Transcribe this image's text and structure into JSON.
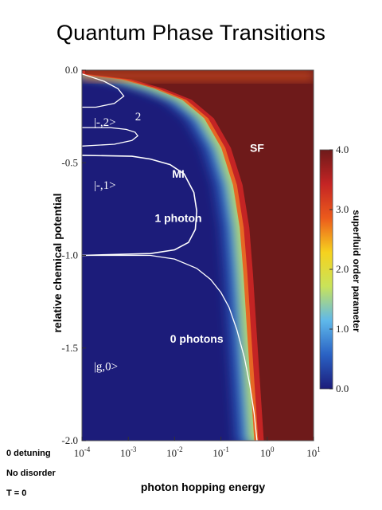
{
  "chart_data": {
    "type": "heatmap",
    "title": "Quantum Phase Transitions",
    "xlabel": "photon hopping energy",
    "ylabel": "relative chemical potential",
    "x_scale": "log",
    "xlim": [
      0.0001,
      10
    ],
    "ylim": [
      -2.0,
      0.0
    ],
    "x_ticks": [
      "10-4",
      "10-3",
      "10-2",
      "10-1",
      "100",
      "101"
    ],
    "y_ticks": [
      "0.0",
      "-0.5",
      "-1.0",
      "-1.5",
      "-2.0"
    ],
    "colorbar": {
      "label": "superfluid order parameter",
      "range": [
        0.0,
        4.0
      ],
      "ticks": [
        "0.0",
        "1.0",
        "2.0",
        "3.0",
        "4.0"
      ],
      "colors": [
        "#1c1c7a",
        "#2a62c4",
        "#5fb8ea",
        "#c9e35a",
        "#f6d21e",
        "#ec5b1c",
        "#c42424",
        "#6e1a1a"
      ]
    },
    "annotations": [
      {
        "text": "SF",
        "x": 0.6,
        "y": -0.44
      },
      {
        "text": "MI",
        "x": 0.012,
        "y": -0.58
      },
      {
        "text": "1 photon",
        "x": 0.012,
        "y": -0.82
      },
      {
        "text": "0 photons",
        "x": 0.03,
        "y": -1.47
      },
      {
        "text": "|g,0>",
        "x": 0.00018,
        "y": -1.62
      },
      {
        "text": "|-,1>",
        "x": 0.00018,
        "y": -0.64
      },
      {
        "text": "|-,2>",
        "x": 0.00018,
        "y": -0.3
      },
      {
        "text": "2",
        "x": 0.0014,
        "y": -0.27
      }
    ],
    "boundaries": [
      {
        "name": "n0",
        "points": [
          [
            0.0001,
            -1.0
          ],
          [
            0.003,
            -1.0
          ],
          [
            0.01,
            -1.02
          ],
          [
            0.03,
            -1.07
          ],
          [
            0.06,
            -1.13
          ],
          [
            0.1,
            -1.2
          ],
          [
            0.15,
            -1.28
          ],
          [
            0.22,
            -1.4
          ],
          [
            0.32,
            -1.55
          ],
          [
            0.42,
            -1.7
          ],
          [
            0.52,
            -1.85
          ],
          [
            0.6,
            -2.0
          ]
        ]
      },
      {
        "name": "n1",
        "points": [
          [
            0.0001,
            -1.0
          ],
          [
            0.003,
            -0.99
          ],
          [
            0.01,
            -0.97
          ],
          [
            0.02,
            -0.93
          ],
          [
            0.028,
            -0.86
          ],
          [
            0.03,
            -0.76
          ],
          [
            0.026,
            -0.66
          ],
          [
            0.016,
            -0.56
          ],
          [
            0.008,
            -0.51
          ],
          [
            0.003,
            -0.48
          ],
          [
            0.0012,
            -0.465
          ],
          [
            0.0001,
            -0.46
          ]
        ]
      },
      {
        "name": "n2",
        "points": [
          [
            0.0001,
            -0.41
          ],
          [
            0.0005,
            -0.4
          ],
          [
            0.0012,
            -0.38
          ],
          [
            0.0016,
            -0.355
          ],
          [
            0.0014,
            -0.335
          ],
          [
            0.0009,
            -0.32
          ],
          [
            0.0004,
            -0.31
          ],
          [
            0.0001,
            -0.31
          ]
        ]
      },
      {
        "name": "n3",
        "points": [
          [
            0.0001,
            -0.02
          ],
          [
            0.0003,
            -0.06
          ],
          [
            0.0006,
            -0.1
          ],
          [
            0.0008,
            -0.14
          ],
          [
            0.0005,
            -0.18
          ],
          [
            0.0002,
            -0.2
          ],
          [
            0.0001,
            -0.2
          ]
        ]
      }
    ],
    "sf_front": [
      [
        0.0001,
        -0.02
      ],
      [
        0.001,
        -0.05
      ],
      [
        0.005,
        -0.1
      ],
      [
        0.02,
        -0.16
      ],
      [
        0.06,
        -0.26
      ],
      [
        0.14,
        -0.42
      ],
      [
        0.25,
        -0.62
      ],
      [
        0.35,
        -0.85
      ],
      [
        0.42,
        -1.1
      ],
      [
        0.5,
        -1.4
      ],
      [
        0.6,
        -1.7
      ],
      [
        0.72,
        -2.0
      ]
    ]
  },
  "notes": [
    "0 detuning",
    "No disorder",
    "T = 0"
  ]
}
